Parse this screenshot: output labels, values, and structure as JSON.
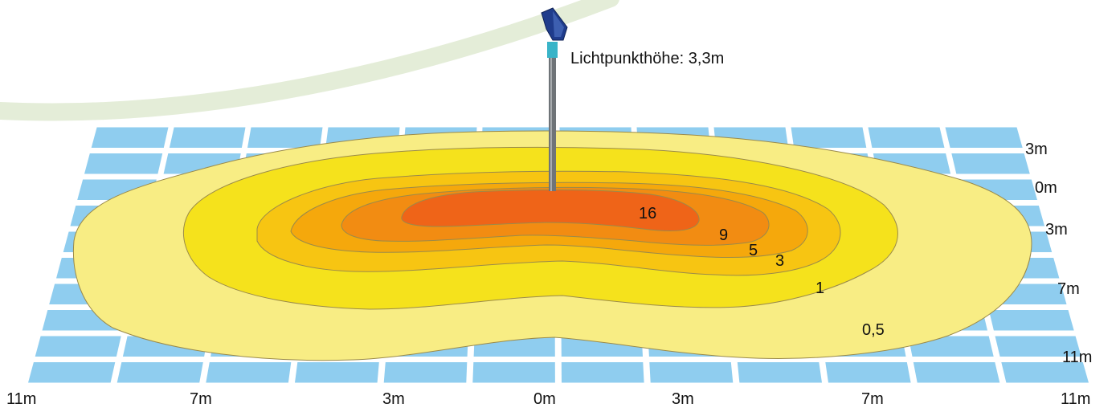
{
  "annotation": {
    "height_label": "Lichtpunkthöhe: 3,3m"
  },
  "x_axis_labels": [
    "11m",
    "7m",
    "3m",
    "0m",
    "3m",
    "7m",
    "11m"
  ],
  "y_axis_labels": [
    "3m",
    "0m",
    "3m",
    "7m",
    "11m"
  ],
  "isolines": [
    {
      "label": "16",
      "color": "#ef6418"
    },
    {
      "label": "9",
      "color": "#f28c12"
    },
    {
      "label": "5",
      "color": "#f5a80c"
    },
    {
      "label": "3",
      "color": "#f7c512"
    },
    {
      "label": "1",
      "color": "#f5e21c"
    },
    {
      "label": "0,5",
      "color": "#f8ed84"
    }
  ],
  "colors": {
    "grid_tile": "#8fcdef",
    "decor_arc": "#e6eedb",
    "pole": "#6f7478",
    "luminaire": "#1f3c8c",
    "collar": "#39b4c8"
  }
}
